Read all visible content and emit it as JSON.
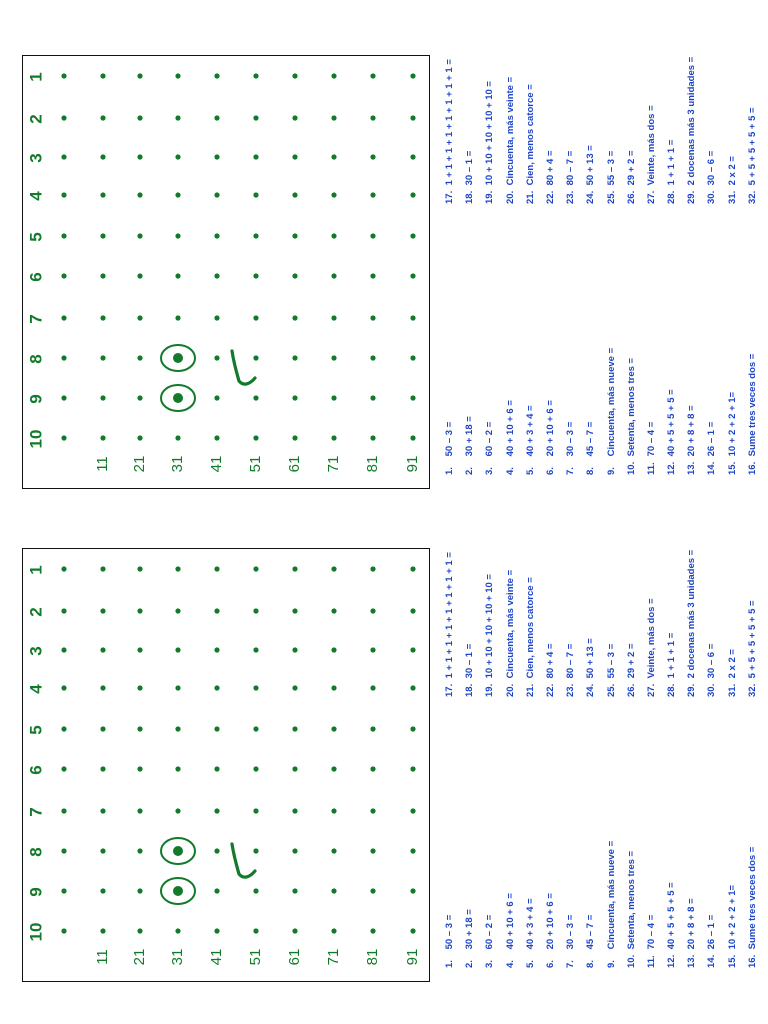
{
  "grid": {
    "columns": [
      "1",
      "2",
      "3",
      "4",
      "5",
      "6",
      "7",
      "8",
      "9",
      "10"
    ],
    "rows": [
      "11",
      "21",
      "31",
      "41",
      "51",
      "61",
      "71",
      "81",
      "91"
    ]
  },
  "colors": {
    "ink_green": "#127a2a",
    "problem_blue": "#1c44c7",
    "border": "#111111"
  },
  "worksheets": [
    {
      "problems": [
        {
          "n": "1.",
          "text": "50 – 3 ="
        },
        {
          "n": "2.",
          "text": "30 + 18 ="
        },
        {
          "n": "3.",
          "text": "60 – 2 ="
        },
        {
          "n": "4.",
          "text": "40 + 10 + 6 ="
        },
        {
          "n": "5.",
          "text": "40 + 3 + 4 ="
        },
        {
          "n": "6.",
          "text": "20 + 10 + 6 ="
        },
        {
          "n": "7.",
          "text": "30 – 3 ="
        },
        {
          "n": "8.",
          "text": "45 – 7 ="
        },
        {
          "n": "9.",
          "text": "Cincuenta, más nueve ="
        },
        {
          "n": "10.",
          "text": "Setenta, menos tres ="
        },
        {
          "n": "11.",
          "text": "70 – 4 ="
        },
        {
          "n": "12.",
          "text": "40 + 5 + 5 + 5 ="
        },
        {
          "n": "13.",
          "text": "20 + 8 + 8 ="
        },
        {
          "n": "14.",
          "text": "26 – 1 ="
        },
        {
          "n": "15.",
          "text": "10 + 2 + 2 + 1="
        },
        {
          "n": "16.",
          "text": "Sume tres veces dos ="
        },
        {
          "n": "17.",
          "text": "1 + 1 + 1 + 1 + 1 + 1 + 1 + 1 ="
        },
        {
          "n": "18.",
          "text": "30 – 1 ="
        },
        {
          "n": "19.",
          "text": "10 + 10 + 10 + 10 + 10 ="
        },
        {
          "n": "20.",
          "text": "Cincuenta, más veinte ="
        },
        {
          "n": "21.",
          "text": "Cien, menos catorce ="
        },
        {
          "n": "22.",
          "text": "80 + 4 ="
        },
        {
          "n": "23.",
          "text": "80 – 7 ="
        },
        {
          "n": "24.",
          "text": "50 + 13 ="
        },
        {
          "n": "25.",
          "text": "55 – 3 ="
        },
        {
          "n": "26.",
          "text": "29 + 2 ="
        },
        {
          "n": "27.",
          "text": "Veinte, más dos ="
        },
        {
          "n": "28.",
          "text": "1 + 1 + 1 ="
        },
        {
          "n": "29.",
          "text": "2 docenas más 3 unidades ="
        },
        {
          "n": "30.",
          "text": "30 – 6 ="
        },
        {
          "n": "31.",
          "text": "2 x 2 ="
        },
        {
          "n": "32.",
          "text": "5 + 5 + 5 + 5 + 5 ="
        }
      ]
    },
    {
      "problems": [
        {
          "n": "1.",
          "text": "50 – 3 ="
        },
        {
          "n": "2.",
          "text": "30 + 18 ="
        },
        {
          "n": "3.",
          "text": "60 – 2 ="
        },
        {
          "n": "4.",
          "text": "40 + 10 + 6 ="
        },
        {
          "n": "5.",
          "text": "40 + 3 + 4 ="
        },
        {
          "n": "6.",
          "text": "20 + 10 + 6 ="
        },
        {
          "n": "7.",
          "text": "30 – 3 ="
        },
        {
          "n": "8.",
          "text": "45 – 7 ="
        },
        {
          "n": "9.",
          "text": "Cincuenta, más nueve ="
        },
        {
          "n": "10.",
          "text": "Setenta, menos tres ="
        },
        {
          "n": "11.",
          "text": "70 – 4 ="
        },
        {
          "n": "12.",
          "text": "40 + 5 + 5 + 5 ="
        },
        {
          "n": "13.",
          "text": "20 + 8 + 8 ="
        },
        {
          "n": "14.",
          "text": "26 – 1 ="
        },
        {
          "n": "15.",
          "text": "10 + 2 + 2 + 1="
        },
        {
          "n": "16.",
          "text": "Sume tres veces dos ="
        },
        {
          "n": "17.",
          "text": "1 + 1 + 1 + 1 + 1 + 1 + 1 + 1 ="
        },
        {
          "n": "18.",
          "text": "30 – 1 ="
        },
        {
          "n": "19.",
          "text": "10 + 10 + 10 + 10 + 10 ="
        },
        {
          "n": "20.",
          "text": "Cincuenta, más veinte ="
        },
        {
          "n": "21.",
          "text": "Cien, menos catorce ="
        },
        {
          "n": "22.",
          "text": "80 + 4 ="
        },
        {
          "n": "23.",
          "text": "80 – 7 ="
        },
        {
          "n": "24.",
          "text": "50 + 13 ="
        },
        {
          "n": "25.",
          "text": "55 – 3 ="
        },
        {
          "n": "26.",
          "text": "29 + 2 ="
        },
        {
          "n": "27.",
          "text": "Veinte, más dos ="
        },
        {
          "n": "28.",
          "text": "1 + 1 + 1 ="
        },
        {
          "n": "29.",
          "text": "2 docenas más 3 unidades ="
        },
        {
          "n": "30.",
          "text": "30 – 6 ="
        },
        {
          "n": "31.",
          "text": "2 x 2 ="
        },
        {
          "n": "32.",
          "text": "5 + 5 + 5 + 5 + 5 ="
        }
      ]
    }
  ]
}
